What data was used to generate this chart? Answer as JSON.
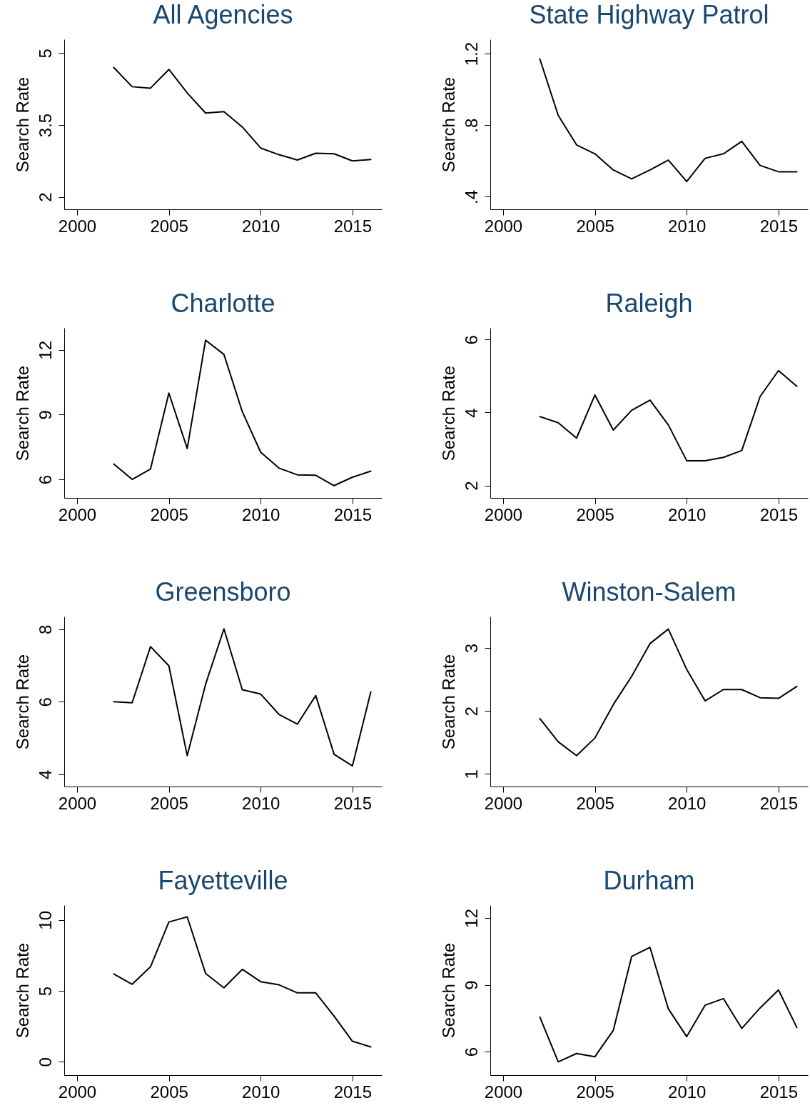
{
  "chart_data": [
    {
      "type": "line",
      "title": "All Agencies",
      "ylabel": "Search Rate",
      "color": "#000000",
      "x": [
        2002,
        2003,
        2004,
        2005,
        2006,
        2007,
        2008,
        2009,
        2010,
        2011,
        2012,
        2013,
        2014,
        2015,
        2016
      ],
      "values": [
        4.7,
        4.3,
        4.27,
        4.66,
        4.17,
        3.75,
        3.78,
        3.46,
        3.02,
        2.88,
        2.77,
        2.91,
        2.9,
        2.75,
        2.78
      ],
      "xlim": [
        1999.3,
        2016.6
      ],
      "ylim": [
        1.74,
        5.29
      ],
      "xticks": [
        2000,
        2005,
        2010,
        2015
      ],
      "yticks": [
        2,
        3.5,
        5
      ]
    },
    {
      "type": "line",
      "title": "State Highway Patrol",
      "ylabel": "Search Rate",
      "color": "#000000",
      "x": [
        2002,
        2003,
        2004,
        2005,
        2006,
        2007,
        2008,
        2009,
        2010,
        2011,
        2012,
        2013,
        2014,
        2015,
        2016
      ],
      "values": [
        1.17,
        0.855,
        0.69,
        0.64,
        0.55,
        0.5,
        0.55,
        0.605,
        0.485,
        0.615,
        0.64,
        0.71,
        0.575,
        0.54,
        0.54
      ],
      "xlim": [
        1999.3,
        2016.6
      ],
      "ylim": [
        0.33,
        1.28
      ],
      "xticks": [
        2000,
        2005,
        2010,
        2015
      ],
      "yticks": [
        {
          "value": 0.4,
          "label": ".4"
        },
        {
          "value": 0.8,
          "label": ".8"
        },
        1.2
      ]
    },
    {
      "type": "line",
      "title": "Charlotte",
      "ylabel": "Search Rate",
      "color": "#000000",
      "x": [
        2002,
        2003,
        2004,
        2005,
        2006,
        2007,
        2008,
        2009,
        2010,
        2011,
        2012,
        2013,
        2014,
        2015,
        2016
      ],
      "values": [
        6.71,
        6.0,
        6.48,
        10.0,
        7.43,
        12.45,
        11.79,
        9.14,
        7.26,
        6.52,
        6.21,
        6.19,
        5.71,
        6.1,
        6.38
      ],
      "xlim": [
        1999.3,
        2016.6
      ],
      "ylim": [
        5.14,
        13.02
      ],
      "xticks": [
        2000,
        2005,
        2010,
        2015
      ],
      "yticks": [
        6,
        9,
        12
      ]
    },
    {
      "type": "line",
      "title": "Raleigh",
      "ylabel": "Search Rate",
      "color": "#000000",
      "x": [
        2002,
        2003,
        2004,
        2005,
        2006,
        2007,
        2008,
        2009,
        2010,
        2011,
        2012,
        2013,
        2014,
        2015,
        2016
      ],
      "values": [
        3.89,
        3.72,
        3.3,
        4.48,
        3.52,
        4.06,
        4.34,
        3.66,
        2.68,
        2.68,
        2.77,
        2.96,
        4.44,
        5.15,
        4.72
      ],
      "xlim": [
        1999.3,
        2016.6
      ],
      "ylim": [
        1.66,
        6.32
      ],
      "xticks": [
        2000,
        2005,
        2010,
        2015
      ],
      "yticks": [
        2,
        4,
        6
      ]
    },
    {
      "type": "line",
      "title": "Greensboro",
      "ylabel": "Search Rate",
      "color": "#000000",
      "x": [
        2002,
        2003,
        2004,
        2005,
        2006,
        2007,
        2008,
        2009,
        2010,
        2011,
        2012,
        2013,
        2014,
        2015,
        2016
      ],
      "values": [
        6.0,
        5.97,
        7.52,
        6.99,
        4.51,
        6.48,
        8.01,
        6.33,
        6.21,
        5.65,
        5.38,
        6.17,
        4.55,
        4.23,
        6.27
      ],
      "xlim": [
        1999.3,
        2016.6
      ],
      "ylim": [
        3.66,
        8.35
      ],
      "xticks": [
        2000,
        2005,
        2010,
        2015
      ],
      "yticks": [
        4,
        6,
        8
      ]
    },
    {
      "type": "line",
      "title": "Winston-Salem",
      "ylabel": "Search Rate",
      "color": "#000000",
      "x": [
        2002,
        2003,
        2004,
        2005,
        2006,
        2007,
        2008,
        2009,
        2010,
        2011,
        2012,
        2013,
        2014,
        2015,
        2016
      ],
      "values": [
        1.88,
        1.51,
        1.29,
        1.57,
        2.1,
        2.55,
        3.07,
        3.3,
        2.66,
        2.16,
        2.34,
        2.34,
        2.21,
        2.2,
        2.39
      ],
      "xlim": [
        1999.3,
        2016.6
      ],
      "ylim": [
        0.8,
        3.5
      ],
      "xticks": [
        2000,
        2005,
        2010,
        2015
      ],
      "yticks": [
        1,
        2,
        3
      ]
    },
    {
      "type": "line",
      "title": "Fayetteville",
      "ylabel": "Search Rate",
      "color": "#000000",
      "x": [
        2002,
        2003,
        2004,
        2005,
        2006,
        2007,
        2008,
        2009,
        2010,
        2011,
        2012,
        2013,
        2014,
        2015,
        2016
      ],
      "values": [
        6.2,
        5.47,
        6.7,
        9.86,
        10.22,
        6.23,
        5.22,
        6.52,
        5.65,
        5.43,
        4.86,
        4.86,
        3.22,
        1.45,
        1.05
      ],
      "xlim": [
        1999.3,
        2016.6
      ],
      "ylim": [
        -0.94,
        11.05
      ],
      "xticks": [
        2000,
        2005,
        2010,
        2015
      ],
      "yticks": [
        0,
        5,
        10
      ]
    },
    {
      "type": "line",
      "title": "Durham",
      "ylabel": "Search Rate",
      "color": "#000000",
      "x": [
        2002,
        2003,
        2004,
        2005,
        2006,
        2007,
        2008,
        2009,
        2010,
        2011,
        2012,
        2013,
        2014,
        2015,
        2016
      ],
      "values": [
        7.55,
        5.54,
        5.91,
        5.77,
        6.95,
        10.27,
        10.68,
        7.92,
        6.67,
        8.08,
        8.38,
        7.04,
        7.96,
        8.77,
        7.08
      ],
      "xlim": [
        1999.3,
        2016.6
      ],
      "ylim": [
        4.94,
        12.58
      ],
      "xticks": [
        2000,
        2005,
        2010,
        2015
      ],
      "yticks": [
        6,
        9,
        12
      ]
    }
  ]
}
